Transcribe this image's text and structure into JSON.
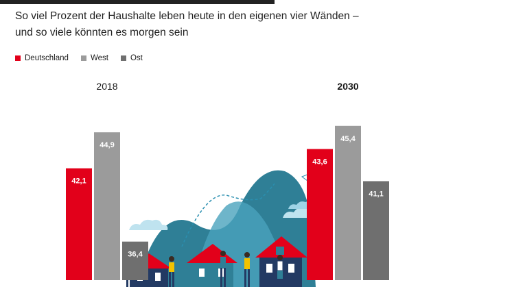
{
  "header": {
    "subtitle_line1": "So viel Prozent der Haushalte leben heute in den eigenen vier Wänden –",
    "subtitle_line2": "und so viele könnten es morgen sein"
  },
  "chart_data": {
    "type": "bar",
    "categories": [
      "2018",
      "2030"
    ],
    "series": [
      {
        "name": "Deutschland",
        "values": [
          42.1,
          43.6
        ],
        "labels": [
          "42,1",
          "43,6"
        ],
        "color": "#e2001a"
      },
      {
        "name": "West",
        "values": [
          44.9,
          45.4
        ],
        "labels": [
          "44,9",
          "45,4"
        ],
        "color": "#9b9b9b"
      },
      {
        "name": "Ost",
        "values": [
          36.4,
          41.1
        ],
        "labels": [
          "36,4",
          "41,1"
        ],
        "color": "#6f6f6f"
      }
    ],
    "ylim": [
      33.4,
      47.2
    ],
    "grid": false,
    "legend": "top-left"
  }
}
